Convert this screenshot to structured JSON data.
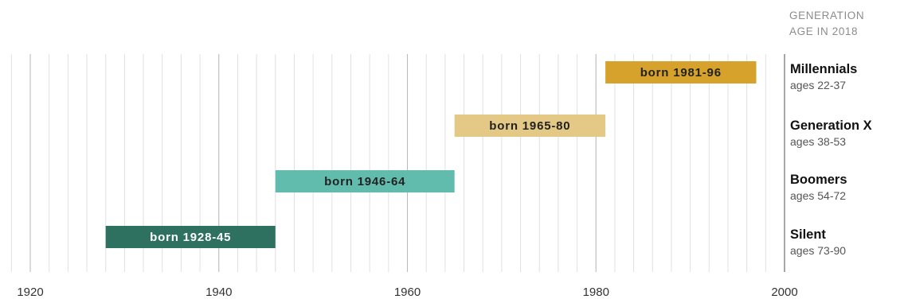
{
  "chart_data": {
    "type": "timeline",
    "header": [
      "GENERATION",
      "AGE IN 2018"
    ],
    "x_ticks": [
      1920,
      1940,
      1960,
      1980,
      2000
    ],
    "xlim": [
      1917,
      2000
    ],
    "grid": true,
    "bars": [
      {
        "generation": "Millennials",
        "ages": "ages 22-37",
        "label": "born 1981-96",
        "start": 1981,
        "end": 1997,
        "color": "#d6a22b",
        "text_color": "#222222"
      },
      {
        "generation": "Generation X",
        "ages": "ages 38-53",
        "label": "born 1965-80",
        "start": 1965,
        "end": 1981,
        "color": "#e3c886",
        "text_color": "#222222"
      },
      {
        "generation": "Boomers",
        "ages": "ages 54-72",
        "label": "born 1946-64",
        "start": 1946,
        "end": 1965,
        "color": "#62bcad",
        "text_color": "#222222"
      },
      {
        "generation": "Silent",
        "ages": "ages 73-90",
        "label": "born 1928-45",
        "start": 1928,
        "end": 1946,
        "color": "#2f7161",
        "text_color": "#ffffff"
      }
    ]
  }
}
